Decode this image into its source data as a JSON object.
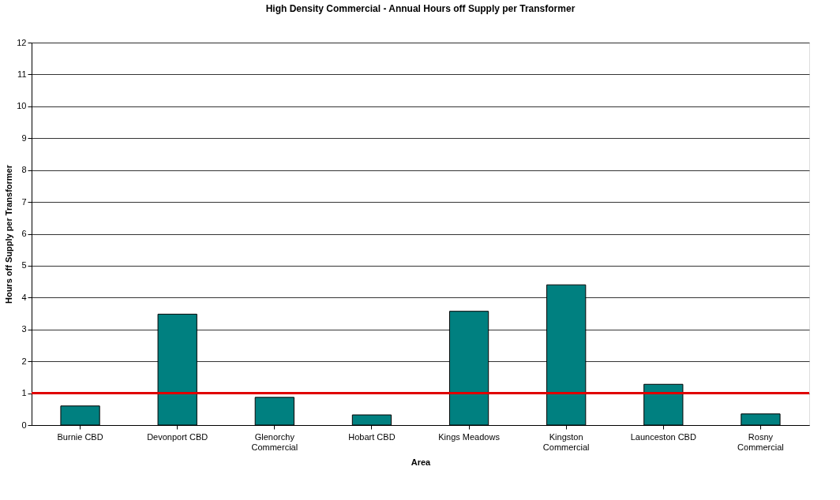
{
  "chart_data": {
    "type": "bar",
    "title": "High Density Commercial - Annual Hours off Supply per Transformer",
    "xlabel": "Area",
    "ylabel": "Hours off Supply per Transformer",
    "categories": [
      "Burnie CBD",
      "Devonport CBD",
      "Glenorchy Commercial",
      "Hobart CBD",
      "Kings Meadows",
      "Kingston Commercial",
      "Launceston CBD",
      "Rosny Commercial"
    ],
    "values": [
      0.6,
      3.48,
      0.87,
      0.32,
      3.57,
      4.4,
      1.28,
      0.35
    ],
    "color": "#008080",
    "ylim": [
      0,
      12
    ],
    "yticks": [
      0,
      1,
      2,
      3,
      4,
      5,
      6,
      7,
      8,
      9,
      10,
      11,
      12
    ],
    "grid": "y",
    "ref_lines": [
      {
        "axis": "y",
        "value": 1,
        "color": "#e00000"
      }
    ]
  }
}
